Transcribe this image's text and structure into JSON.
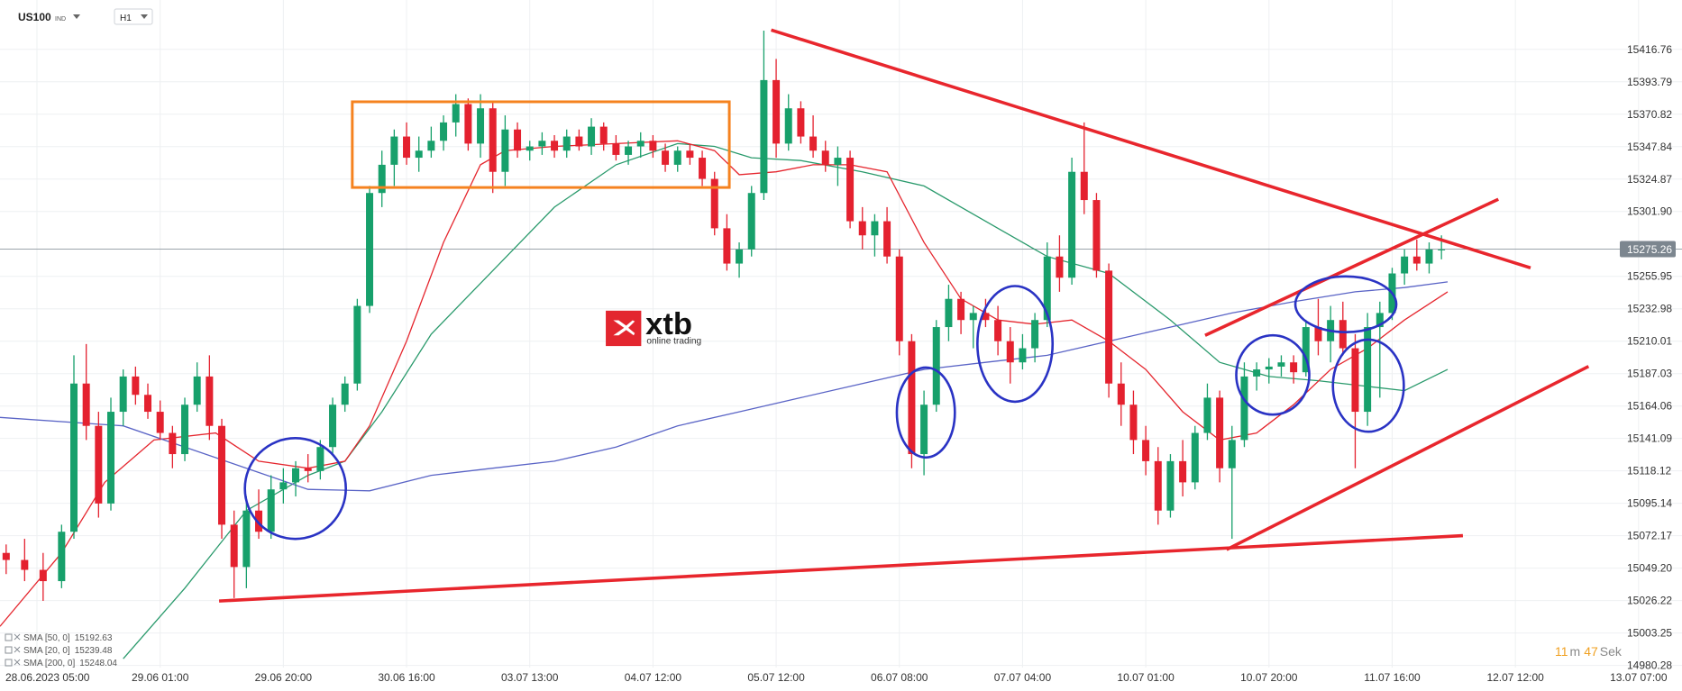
{
  "header": {
    "symbol": "US100",
    "market": "IND",
    "interval": "H1"
  },
  "logo": {
    "brand": "xtb",
    "tagline": "online trading"
  },
  "timer": {
    "minutes": 11,
    "minutes_unit": "m",
    "seconds": 47,
    "seconds_unit": "Sek"
  },
  "chart_data": {
    "type": "candlestick",
    "up_color": "#17a06b",
    "down_color": "#e4212f",
    "ylim": [
      14978.76,
      15451.74
    ],
    "xlim": [
      0,
      273.05
    ],
    "grid": true,
    "current_price": 15275.26,
    "yticks": [
      15416.76,
      15393.79,
      15370.82,
      15347.84,
      15324.87,
      {
        "value": 15301.9,
        "label": "15301.90"
      },
      15255.95,
      15232.98,
      15210.01,
      15187.03,
      15164.06,
      15141.09,
      15118.12,
      15095.14,
      15072.17,
      {
        "value": 15049.2,
        "label": "15049.20"
      },
      15026.22,
      15003.25,
      14980.28
    ],
    "xticks": [
      {
        "value": 6,
        "label": "28.06.2023  05:00"
      },
      {
        "value": 26,
        "label": "29.06  01:00"
      },
      {
        "value": 46,
        "label": "29.06  20:00"
      },
      {
        "value": 66,
        "label": "30.06  16:00"
      },
      {
        "value": 86,
        "label": "03.07  13:00"
      },
      {
        "value": 106,
        "label": "04.07  12:00"
      },
      {
        "value": 126,
        "label": "05.07  12:00"
      },
      {
        "value": 146,
        "label": "06.07  08:00"
      },
      {
        "value": 166,
        "label": "07.07  04:00"
      },
      {
        "value": 186,
        "label": "10.07  01:00"
      },
      {
        "value": 206,
        "label": "10.07  20:00"
      },
      {
        "value": 226,
        "label": "11.07  16:00"
      },
      {
        "value": 246,
        "label": "12.07  12:00"
      },
      {
        "value": 266,
        "label": "13.07  07:00"
      }
    ],
    "candles": [
      {
        "x": 1,
        "open": 15060,
        "high": 15066,
        "low": 15045,
        "close": 15055
      },
      {
        "x": 4,
        "open": 15055,
        "high": 15070,
        "low": 15040,
        "close": 15048
      },
      {
        "x": 7,
        "open": 15048,
        "high": 15060,
        "low": 15026,
        "close": 15040
      },
      {
        "x": 10,
        "open": 15040,
        "high": 15080,
        "low": 15035,
        "close": 15075
      },
      {
        "x": 12,
        "open": 15075,
        "high": 15200,
        "low": 15070,
        "close": 15180
      },
      {
        "x": 14,
        "open": 15180,
        "high": 15208,
        "low": 15140,
        "close": 15150
      },
      {
        "x": 16,
        "open": 15150,
        "high": 15160,
        "low": 15085,
        "close": 15095
      },
      {
        "x": 18,
        "open": 15095,
        "high": 15170,
        "low": 15090,
        "close": 15160
      },
      {
        "x": 20,
        "open": 15160,
        "high": 15190,
        "low": 15150,
        "close": 15185
      },
      {
        "x": 22,
        "open": 15185,
        "high": 15192,
        "low": 15165,
        "close": 15172
      },
      {
        "x": 24,
        "open": 15172,
        "high": 15180,
        "low": 15155,
        "close": 15160
      },
      {
        "x": 26,
        "open": 15160,
        "high": 15168,
        "low": 15140,
        "close": 15145
      },
      {
        "x": 28,
        "open": 15145,
        "high": 15150,
        "low": 15120,
        "close": 15130
      },
      {
        "x": 30,
        "open": 15130,
        "high": 15170,
        "low": 15125,
        "close": 15165
      },
      {
        "x": 32,
        "open": 15165,
        "high": 15195,
        "low": 15160,
        "close": 15185
      },
      {
        "x": 34,
        "open": 15185,
        "high": 15200,
        "low": 15140,
        "close": 15150
      },
      {
        "x": 36,
        "open": 15150,
        "high": 15155,
        "low": 15070,
        "close": 15080
      },
      {
        "x": 38,
        "open": 15080,
        "high": 15090,
        "low": 15028,
        "close": 15050
      },
      {
        "x": 40,
        "open": 15050,
        "high": 15100,
        "low": 15035,
        "close": 15090
      },
      {
        "x": 42,
        "open": 15090,
        "high": 15105,
        "low": 15070,
        "close": 15075
      },
      {
        "x": 44,
        "open": 15075,
        "high": 15115,
        "low": 15070,
        "close": 15105
      },
      {
        "x": 46,
        "open": 15105,
        "high": 15120,
        "low": 15095,
        "close": 15110
      },
      {
        "x": 48,
        "open": 15110,
        "high": 15125,
        "low": 15100,
        "close": 15120
      },
      {
        "x": 50,
        "open": 15120,
        "high": 15130,
        "low": 15110,
        "close": 15118
      },
      {
        "x": 52,
        "open": 15118,
        "high": 15140,
        "low": 15112,
        "close": 15135
      },
      {
        "x": 54,
        "open": 15135,
        "high": 15170,
        "low": 15130,
        "close": 15165
      },
      {
        "x": 56,
        "open": 15165,
        "high": 15185,
        "low": 15160,
        "close": 15180
      },
      {
        "x": 58,
        "open": 15180,
        "high": 15240,
        "low": 15175,
        "close": 15235
      },
      {
        "x": 60,
        "open": 15235,
        "high": 15320,
        "low": 15230,
        "close": 15315
      },
      {
        "x": 62,
        "open": 15315,
        "high": 15345,
        "low": 15305,
        "close": 15335
      },
      {
        "x": 64,
        "open": 15335,
        "high": 15360,
        "low": 15320,
        "close": 15355
      },
      {
        "x": 66,
        "open": 15355,
        "high": 15365,
        "low": 15335,
        "close": 15340
      },
      {
        "x": 68,
        "open": 15340,
        "high": 15355,
        "low": 15330,
        "close": 15345
      },
      {
        "x": 70,
        "open": 15345,
        "high": 15362,
        "low": 15340,
        "close": 15352
      },
      {
        "x": 72,
        "open": 15352,
        "high": 15370,
        "low": 15345,
        "close": 15365
      },
      {
        "x": 74,
        "open": 15365,
        "high": 15385,
        "low": 15355,
        "close": 15378
      },
      {
        "x": 76,
        "open": 15378,
        "high": 15382,
        "low": 15345,
        "close": 15350
      },
      {
        "x": 78,
        "open": 15350,
        "high": 15385,
        "low": 15340,
        "close": 15375
      },
      {
        "x": 80,
        "open": 15375,
        "high": 15380,
        "low": 15315,
        "close": 15330
      },
      {
        "x": 82,
        "open": 15330,
        "high": 15370,
        "low": 15320,
        "close": 15360
      },
      {
        "x": 84,
        "open": 15360,
        "high": 15365,
        "low": 15340,
        "close": 15345
      },
      {
        "x": 86,
        "open": 15345,
        "high": 15352,
        "low": 15338,
        "close": 15348
      },
      {
        "x": 88,
        "open": 15348,
        "high": 15358,
        "low": 15342,
        "close": 15352
      },
      {
        "x": 90,
        "open": 15352,
        "high": 15356,
        "low": 15340,
        "close": 15345
      },
      {
        "x": 92,
        "open": 15345,
        "high": 15360,
        "low": 15340,
        "close": 15355
      },
      {
        "x": 94,
        "open": 15355,
        "high": 15360,
        "low": 15345,
        "close": 15348
      },
      {
        "x": 96,
        "open": 15348,
        "high": 15368,
        "low": 15342,
        "close": 15362
      },
      {
        "x": 98,
        "open": 15362,
        "high": 15365,
        "low": 15345,
        "close": 15350
      },
      {
        "x": 100,
        "open": 15350,
        "high": 15356,
        "low": 15338,
        "close": 15342
      },
      {
        "x": 102,
        "open": 15342,
        "high": 15352,
        "low": 15335,
        "close": 15348
      },
      {
        "x": 104,
        "open": 15348,
        "high": 15358,
        "low": 15340,
        "close": 15352
      },
      {
        "x": 106,
        "open": 15352,
        "high": 15356,
        "low": 15340,
        "close": 15345
      },
      {
        "x": 108,
        "open": 15345,
        "high": 15350,
        "low": 15330,
        "close": 15335
      },
      {
        "x": 110,
        "open": 15335,
        "high": 15348,
        "low": 15330,
        "close": 15345
      },
      {
        "x": 112,
        "open": 15345,
        "high": 15350,
        "low": 15335,
        "close": 15340
      },
      {
        "x": 114,
        "open": 15340,
        "high": 15345,
        "low": 15320,
        "close": 15325
      },
      {
        "x": 116,
        "open": 15325,
        "high": 15330,
        "low": 15285,
        "close": 15290
      },
      {
        "x": 118,
        "open": 15290,
        "high": 15300,
        "low": 15260,
        "close": 15265
      },
      {
        "x": 120,
        "open": 15265,
        "high": 15280,
        "low": 15255,
        "close": 15275
      },
      {
        "x": 122,
        "open": 15275,
        "high": 15320,
        "low": 15270,
        "close": 15315
      },
      {
        "x": 124,
        "open": 15315,
        "high": 15430,
        "low": 15310,
        "close": 15395
      },
      {
        "x": 126,
        "open": 15395,
        "high": 15410,
        "low": 15340,
        "close": 15350
      },
      {
        "x": 128,
        "open": 15350,
        "high": 15385,
        "low": 15345,
        "close": 15375
      },
      {
        "x": 130,
        "open": 15375,
        "high": 15380,
        "low": 15350,
        "close": 15355
      },
      {
        "x": 132,
        "open": 15355,
        "high": 15370,
        "low": 15340,
        "close": 15345
      },
      {
        "x": 134,
        "open": 15345,
        "high": 15352,
        "low": 15330,
        "close": 15335
      },
      {
        "x": 136,
        "open": 15335,
        "high": 15348,
        "low": 15320,
        "close": 15340
      },
      {
        "x": 138,
        "open": 15340,
        "high": 15345,
        "low": 15290,
        "close": 15295
      },
      {
        "x": 140,
        "open": 15295,
        "high": 15305,
        "low": 15275,
        "close": 15285
      },
      {
        "x": 142,
        "open": 15285,
        "high": 15300,
        "low": 15270,
        "close": 15295
      },
      {
        "x": 144,
        "open": 15295,
        "high": 15305,
        "low": 15265,
        "close": 15270
      },
      {
        "x": 146,
        "open": 15270,
        "high": 15275,
        "low": 15200,
        "close": 15210
      },
      {
        "x": 148,
        "open": 15210,
        "high": 15215,
        "low": 15120,
        "close": 15130
      },
      {
        "x": 150,
        "open": 15130,
        "high": 15175,
        "low": 15115,
        "close": 15165
      },
      {
        "x": 152,
        "open": 15165,
        "high": 15225,
        "low": 15160,
        "close": 15220
      },
      {
        "x": 154,
        "open": 15220,
        "high": 15250,
        "low": 15210,
        "close": 15240
      },
      {
        "x": 156,
        "open": 15240,
        "high": 15245,
        "low": 15215,
        "close": 15225
      },
      {
        "x": 158,
        "open": 15225,
        "high": 15235,
        "low": 15205,
        "close": 15230
      },
      {
        "x": 160,
        "open": 15230,
        "high": 15240,
        "low": 15220,
        "close": 15225
      },
      {
        "x": 162,
        "open": 15225,
        "high": 15235,
        "low": 15200,
        "close": 15210
      },
      {
        "x": 164,
        "open": 15210,
        "high": 15220,
        "low": 15180,
        "close": 15195
      },
      {
        "x": 166,
        "open": 15195,
        "high": 15215,
        "low": 15190,
        "close": 15205
      },
      {
        "x": 168,
        "open": 15205,
        "high": 15230,
        "low": 15195,
        "close": 15225
      },
      {
        "x": 170,
        "open": 15225,
        "high": 15280,
        "low": 15220,
        "close": 15270
      },
      {
        "x": 172,
        "open": 15270,
        "high": 15285,
        "low": 15245,
        "close": 15255
      },
      {
        "x": 174,
        "open": 15255,
        "high": 15340,
        "low": 15250,
        "close": 15330
      },
      {
        "x": 176,
        "open": 15330,
        "high": 15365,
        "low": 15300,
        "close": 15310
      },
      {
        "x": 178,
        "open": 15310,
        "high": 15315,
        "low": 15255,
        "close": 15260
      },
      {
        "x": 180,
        "open": 15260,
        "high": 15265,
        "low": 15170,
        "close": 15180
      },
      {
        "x": 182,
        "open": 15180,
        "high": 15195,
        "low": 15150,
        "close": 15165
      },
      {
        "x": 184,
        "open": 15165,
        "high": 15175,
        "low": 15130,
        "close": 15140
      },
      {
        "x": 186,
        "open": 15140,
        "high": 15150,
        "low": 15115,
        "close": 15125
      },
      {
        "x": 188,
        "open": 15125,
        "high": 15135,
        "low": 15080,
        "close": 15090
      },
      {
        "x": 190,
        "open": 15090,
        "high": 15130,
        "low": 15085,
        "close": 15125
      },
      {
        "x": 192,
        "open": 15125,
        "high": 15140,
        "low": 15100,
        "close": 15110
      },
      {
        "x": 194,
        "open": 15110,
        "high": 15150,
        "low": 15105,
        "close": 15145
      },
      {
        "x": 196,
        "open": 15145,
        "high": 15180,
        "low": 15140,
        "close": 15170
      },
      {
        "x": 198,
        "open": 15170,
        "high": 15175,
        "low": 15110,
        "close": 15120
      },
      {
        "x": 200,
        "open": 15120,
        "high": 15150,
        "low": 15070,
        "close": 15140
      },
      {
        "x": 202,
        "open": 15140,
        "high": 15195,
        "low": 15135,
        "close": 15185
      },
      {
        "x": 204,
        "open": 15185,
        "high": 15195,
        "low": 15175,
        "close": 15190
      },
      {
        "x": 206,
        "open": 15190,
        "high": 15198,
        "low": 15180,
        "close": 15192
      },
      {
        "x": 208,
        "open": 15192,
        "high": 15200,
        "low": 15185,
        "close": 15195
      },
      {
        "x": 210,
        "open": 15195,
        "high": 15200,
        "low": 15180,
        "close": 15188
      },
      {
        "x": 212,
        "open": 15188,
        "high": 15225,
        "low": 15185,
        "close": 15220
      },
      {
        "x": 214,
        "open": 15220,
        "high": 15240,
        "low": 15200,
        "close": 15210
      },
      {
        "x": 216,
        "open": 15210,
        "high": 15235,
        "low": 15195,
        "close": 15225
      },
      {
        "x": 218,
        "open": 15225,
        "high": 15238,
        "low": 15200,
        "close": 15205
      },
      {
        "x": 220,
        "open": 15205,
        "high": 15215,
        "low": 15120,
        "close": 15160
      },
      {
        "x": 222,
        "open": 15160,
        "high": 15230,
        "low": 15150,
        "close": 15220
      },
      {
        "x": 224,
        "open": 15220,
        "high": 15238,
        "low": 15170,
        "close": 15230
      },
      {
        "x": 226,
        "open": 15230,
        "high": 15262,
        "low": 15225,
        "close": 15258
      },
      {
        "x": 228,
        "open": 15258,
        "high": 15275,
        "low": 15250,
        "close": 15270
      },
      {
        "x": 230,
        "open": 15270,
        "high": 15282,
        "low": 15260,
        "close": 15265
      },
      {
        "x": 232,
        "open": 15265,
        "high": 15280,
        "low": 15258,
        "close": 15275
      },
      {
        "x": 234,
        "open": 15275,
        "high": 15285,
        "low": 15268,
        "close": 15275
      }
    ],
    "sma": [
      {
        "name": "SMA [50, 0]",
        "last_value": 15192.63,
        "color": "#2a9a6c",
        "x": [
          20,
          30,
          40,
          50,
          56,
          62,
          70,
          80,
          90,
          100,
          110,
          116,
          122,
          130,
          140,
          150,
          160,
          170,
          180,
          190,
          198,
          206,
          214,
          222,
          228,
          235
        ],
        "values": [
          14985,
          15035,
          15090,
          15115,
          15125,
          15160,
          15215,
          15260,
          15305,
          15335,
          15350,
          15348,
          15340,
          15338,
          15330,
          15320,
          15295,
          15270,
          15258,
          15225,
          15195,
          15185,
          15182,
          15178,
          15175,
          15190
        ]
      },
      {
        "name": "SMA [20, 0]",
        "last_value": 15239.48,
        "color": "#e5262e",
        "x": [
          0,
          10,
          17,
          25,
          35,
          42,
          50,
          56,
          60,
          66,
          72,
          78,
          82,
          90,
          100,
          110,
          116,
          120,
          126,
          132,
          138,
          144,
          150,
          156,
          162,
          168,
          174,
          180,
          186,
          192,
          198,
          204,
          210,
          216,
          222,
          228,
          235
        ],
        "values": [
          15008,
          15060,
          15110,
          15140,
          15145,
          15125,
          15120,
          15125,
          15150,
          15210,
          15280,
          15335,
          15345,
          15348,
          15350,
          15352,
          15345,
          15328,
          15330,
          15335,
          15335,
          15330,
          15280,
          15240,
          15225,
          15222,
          15225,
          15210,
          15190,
          15160,
          15140,
          15145,
          15165,
          15190,
          15205,
          15225,
          15245
        ]
      },
      {
        "name": "SMA [200, 0]",
        "last_value": 15248.04,
        "color": "#5a64c6",
        "x": [
          0,
          20,
          30,
          40,
          50,
          60,
          70,
          80,
          90,
          100,
          110,
          120,
          130,
          140,
          150,
          160,
          170,
          180,
          190,
          200,
          210,
          220,
          228,
          235
        ],
        "values": [
          15156,
          15150,
          15135,
          15120,
          15105,
          15104,
          15115,
          15120,
          15125,
          15135,
          15150,
          15160,
          15170,
          15180,
          15190,
          15195,
          15200,
          15210,
          15220,
          15230,
          15238,
          15245,
          15248,
          15252
        ]
      }
    ]
  }
}
